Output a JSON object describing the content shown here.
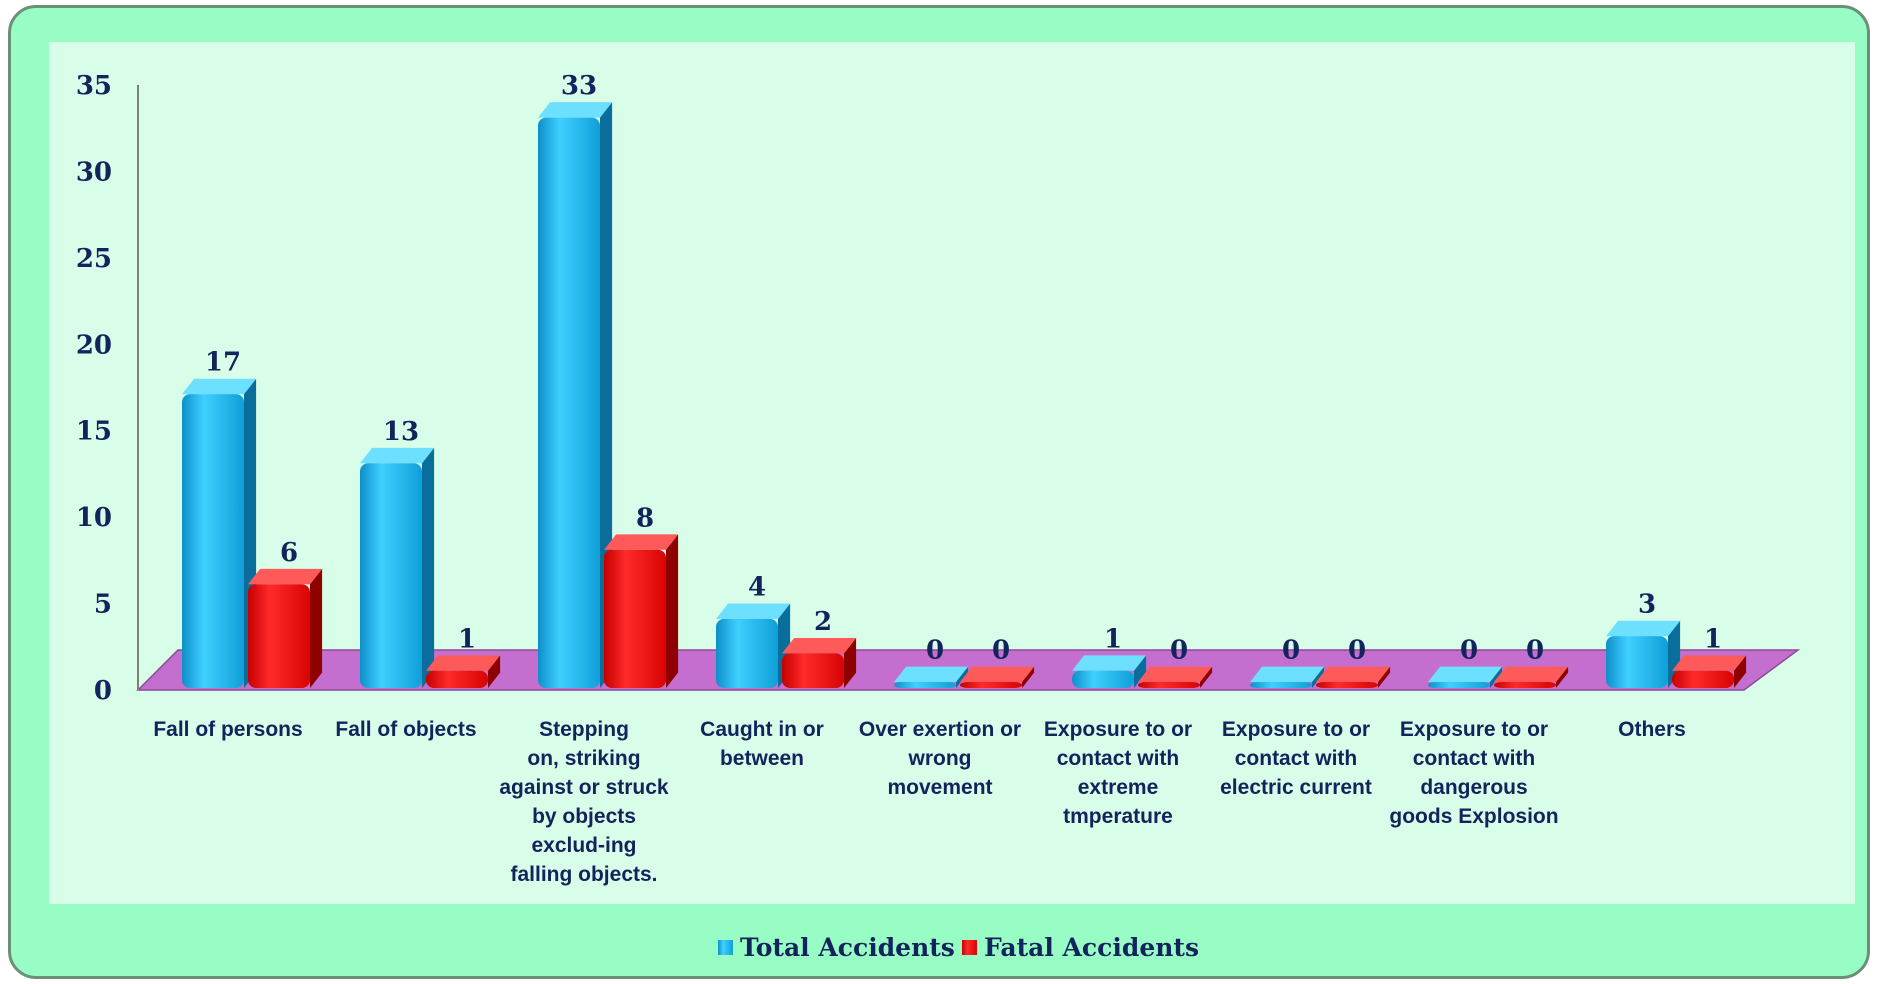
{
  "colors": {
    "frame_bg": "#98fdc4",
    "plot_bg": "#d8fde8",
    "floor": "#c46fcf",
    "total": "#16b2ec",
    "fatal": "#ee0d0d",
    "text": "#13235c"
  },
  "chart_data": {
    "type": "bar",
    "title": "",
    "xlabel": "",
    "ylabel": "",
    "ylim": [
      0,
      35
    ],
    "yticks": [
      0,
      5,
      10,
      15,
      20,
      25,
      30,
      35
    ],
    "grid": false,
    "legend_position": "bottom",
    "categories": [
      [
        "Fall of persons"
      ],
      [
        "Fall of objects"
      ],
      [
        "Stepping",
        "on, striking",
        "against or struck",
        "by objects",
        "exclud-ing",
        "falling objects."
      ],
      [
        "Caught in or",
        "between"
      ],
      [
        "Over exertion or",
        "wrong",
        "movement"
      ],
      [
        "Exposure to or",
        "contact with",
        "extreme",
        "tmperature"
      ],
      [
        "Exposure to or",
        "contact with",
        "electric current"
      ],
      [
        "Exposure to or",
        "contact with",
        "dangerous",
        "goods Explosion"
      ],
      [
        "Others"
      ]
    ],
    "series": [
      {
        "name": "Total Accidents",
        "values": [
          17,
          13,
          33,
          4,
          0,
          1,
          0,
          0,
          3
        ]
      },
      {
        "name": "Fatal Accidents",
        "values": [
          6,
          1,
          8,
          2,
          0,
          0,
          0,
          0,
          1
        ]
      }
    ]
  }
}
